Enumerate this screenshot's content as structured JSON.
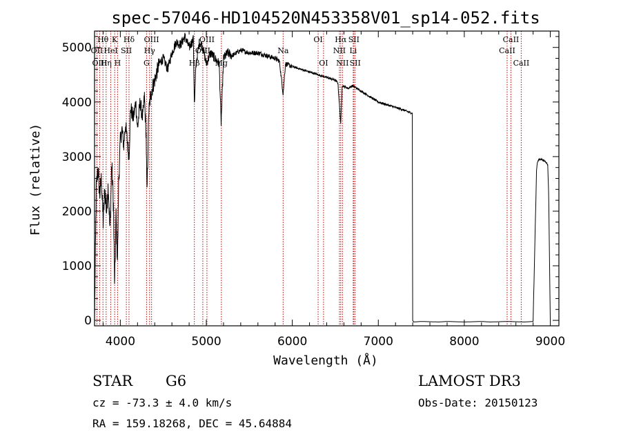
{
  "chart_data": {
    "type": "line",
    "title": "spec-57046-HD104520N453358V01_sp14-052.fits",
    "xlabel": "Wavelength (Å)",
    "ylabel": "Flux (relative)",
    "xlim": [
      3700,
      9100
    ],
    "ylim": [
      -100,
      5300
    ],
    "xticks": [
      4000,
      5000,
      6000,
      7000,
      8000,
      9000
    ],
    "yticks": [
      0,
      1000,
      2000,
      3000,
      4000,
      5000
    ],
    "series": [
      {
        "name": "flux",
        "x": [
          3700,
          3720,
          3740,
          3760,
          3780,
          3800,
          3820,
          3840,
          3860,
          3880,
          3900,
          3920,
          3934,
          3950,
          3968,
          3980,
          4000,
          4020,
          4040,
          4060,
          4080,
          4101,
          4120,
          4150,
          4180,
          4200,
          4230,
          4260,
          4280,
          4300,
          4310,
          4330,
          4350,
          4380,
          4400,
          4450,
          4500,
          4550,
          4600,
          4650,
          4700,
          4750,
          4800,
          4850,
          4861,
          4880,
          4920,
          4960,
          5000,
          5050,
          5100,
          5150,
          5172,
          5200,
          5250,
          5300,
          5400,
          5500,
          5600,
          5700,
          5800,
          5850,
          5893,
          5920,
          6000,
          6100,
          6200,
          6300,
          6400,
          6500,
          6530,
          6563,
          6580,
          6650,
          6700,
          6800,
          6900,
          7000,
          7100,
          7200,
          7300,
          7380,
          7395,
          7400,
          7410,
          7500,
          7600,
          7700,
          7800,
          7900,
          8000,
          8100,
          8200,
          8300,
          8400,
          8500,
          8600,
          8700,
          8800,
          8840,
          8850,
          8870,
          8900,
          8950,
          8970,
          8980,
          9000
        ],
        "y": [
          0,
          2400,
          2800,
          2300,
          2600,
          1800,
          2400,
          2000,
          2500,
          1600,
          2900,
          2100,
          600,
          1900,
          1100,
          2500,
          3300,
          3500,
          3200,
          3600,
          3300,
          3000,
          3900,
          3700,
          4000,
          3500,
          4000,
          3700,
          4100,
          3400,
          2300,
          3800,
          4100,
          4300,
          4400,
          4700,
          4800,
          4600,
          4900,
          5100,
          5050,
          5200,
          5000,
          5150,
          3900,
          4700,
          5100,
          5000,
          4700,
          4900,
          4800,
          4700,
          3600,
          4800,
          4900,
          4850,
          4950,
          4900,
          4900,
          4850,
          4800,
          4750,
          4150,
          4700,
          4650,
          4600,
          4550,
          4500,
          4450,
          4400,
          4350,
          3600,
          4300,
          4250,
          4300,
          4200,
          4100,
          4000,
          3950,
          3900,
          3850,
          3800,
          3800,
          0,
          -30,
          -20,
          -25,
          -30,
          -20,
          -25,
          -30,
          -25,
          -20,
          -30,
          -25,
          -20,
          -25,
          -30,
          -20,
          2750,
          2900,
          2950,
          2950,
          2900,
          2850,
          2400,
          0
        ]
      }
    ],
    "lines": [
      {
        "name": "Hθ",
        "wave": 3798,
        "row": 0
      },
      {
        "name": "OII",
        "wave": 3727,
        "row": 1
      },
      {
        "name": "OIII",
        "wave": 3760,
        "row": 2
      },
      {
        "name": "K",
        "wave": 3934,
        "row": 0
      },
      {
        "name": "HeI",
        "wave": 3889,
        "row": 1
      },
      {
        "name": "Hη",
        "wave": 3835,
        "row": 2
      },
      {
        "name": "SII",
        "wave": 4070,
        "row": 1
      },
      {
        "name": "H",
        "wave": 3968,
        "row": 2
      },
      {
        "name": "Hδ",
        "wave": 4101,
        "row": 0
      },
      {
        "name": "OIII",
        "wave": 4363,
        "row": 0
      },
      {
        "name": "Hγ",
        "wave": 4340,
        "row": 1
      },
      {
        "name": "G",
        "wave": 4305,
        "row": 2
      },
      {
        "name": "OIII",
        "wave": 5007,
        "row": 0
      },
      {
        "name": "OIII",
        "wave": 4959,
        "row": 1
      },
      {
        "name": "Hβ",
        "wave": 4861,
        "row": 2
      },
      {
        "name": "Mg",
        "wave": 5175,
        "row": 2
      },
      {
        "name": "Na",
        "wave": 5893,
        "row": 1
      },
      {
        "name": "OI",
        "wave": 6300,
        "row": 0
      },
      {
        "name": "OI",
        "wave": 6363,
        "row": 2
      },
      {
        "name": "Hα",
        "wave": 6563,
        "row": 0
      },
      {
        "name": "NII",
        "wave": 6548,
        "row": 1
      },
      {
        "name": "NII",
        "wave": 6583,
        "row": 2
      },
      {
        "name": "SII",
        "wave": 6716,
        "row": 0
      },
      {
        "name": "Li",
        "wave": 6708,
        "row": 1
      },
      {
        "name": "SII",
        "wave": 6731,
        "row": 2
      },
      {
        "name": "CaII",
        "wave": 8542,
        "row": 0
      },
      {
        "name": "CaII",
        "wave": 8498,
        "row": 1
      },
      {
        "name": "CaII",
        "wave": 8662,
        "row": 2
      }
    ]
  },
  "info": {
    "object_class": "STAR",
    "subclass": "G6",
    "survey": "LAMOST DR3",
    "cz": "cz = -73.3 ± 4.0 km/s",
    "obs_date": "Obs-Date: 20150123",
    "coords": "RA = 159.18268, DEC =  45.64884"
  },
  "colors": {
    "spectrum": "#000000",
    "line_marker": "#c00000",
    "frame": "#000000"
  }
}
